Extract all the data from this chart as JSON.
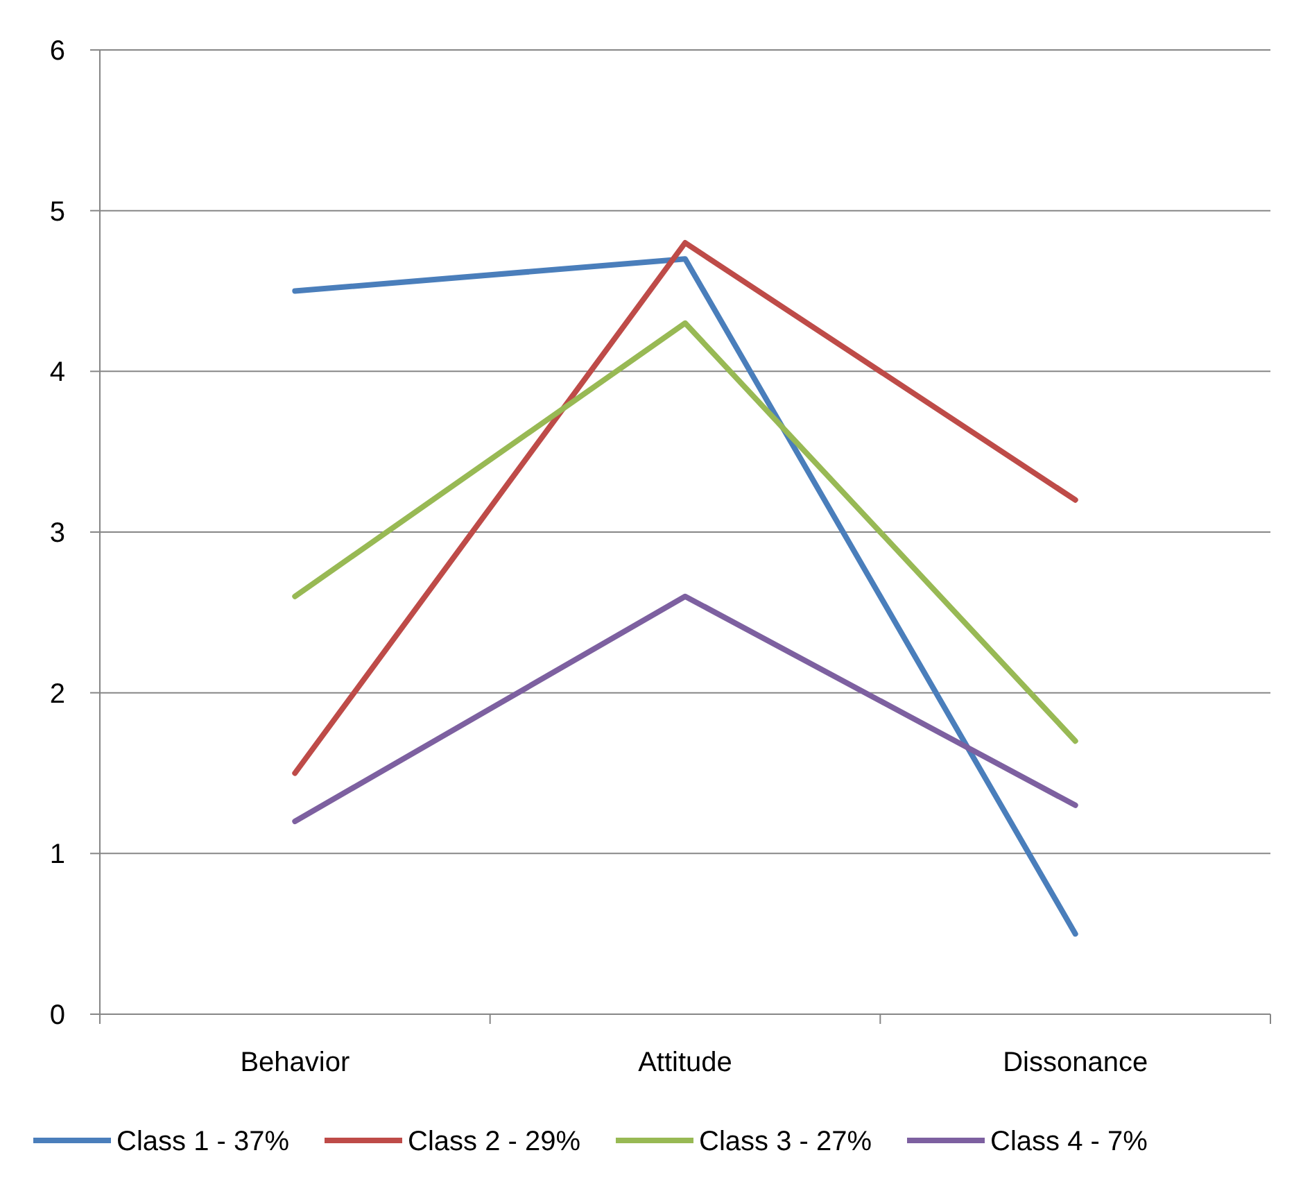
{
  "chart_data": {
    "type": "line",
    "categories": [
      "Behavior",
      "Attitude",
      "Dissonance"
    ],
    "series": [
      {
        "name": "Class 1 - 37%",
        "color": "#4a7ebb",
        "values": [
          4.5,
          4.7,
          0.5
        ]
      },
      {
        "name": "Class 2 - 29%",
        "color": "#be4b48",
        "values": [
          1.5,
          4.8,
          3.2
        ]
      },
      {
        "name": "Class 3 - 27%",
        "color": "#98b954",
        "values": [
          2.6,
          4.3,
          1.7
        ]
      },
      {
        "name": "Class 4 - 7%",
        "color": "#7d60a0",
        "values": [
          1.2,
          2.6,
          1.3
        ]
      }
    ],
    "ylim": [
      0,
      6
    ],
    "yticks": [
      0,
      1,
      2,
      3,
      4,
      5,
      6
    ],
    "grid": "y",
    "legend": "bottom",
    "marker": "none",
    "line_style": "solid"
  }
}
